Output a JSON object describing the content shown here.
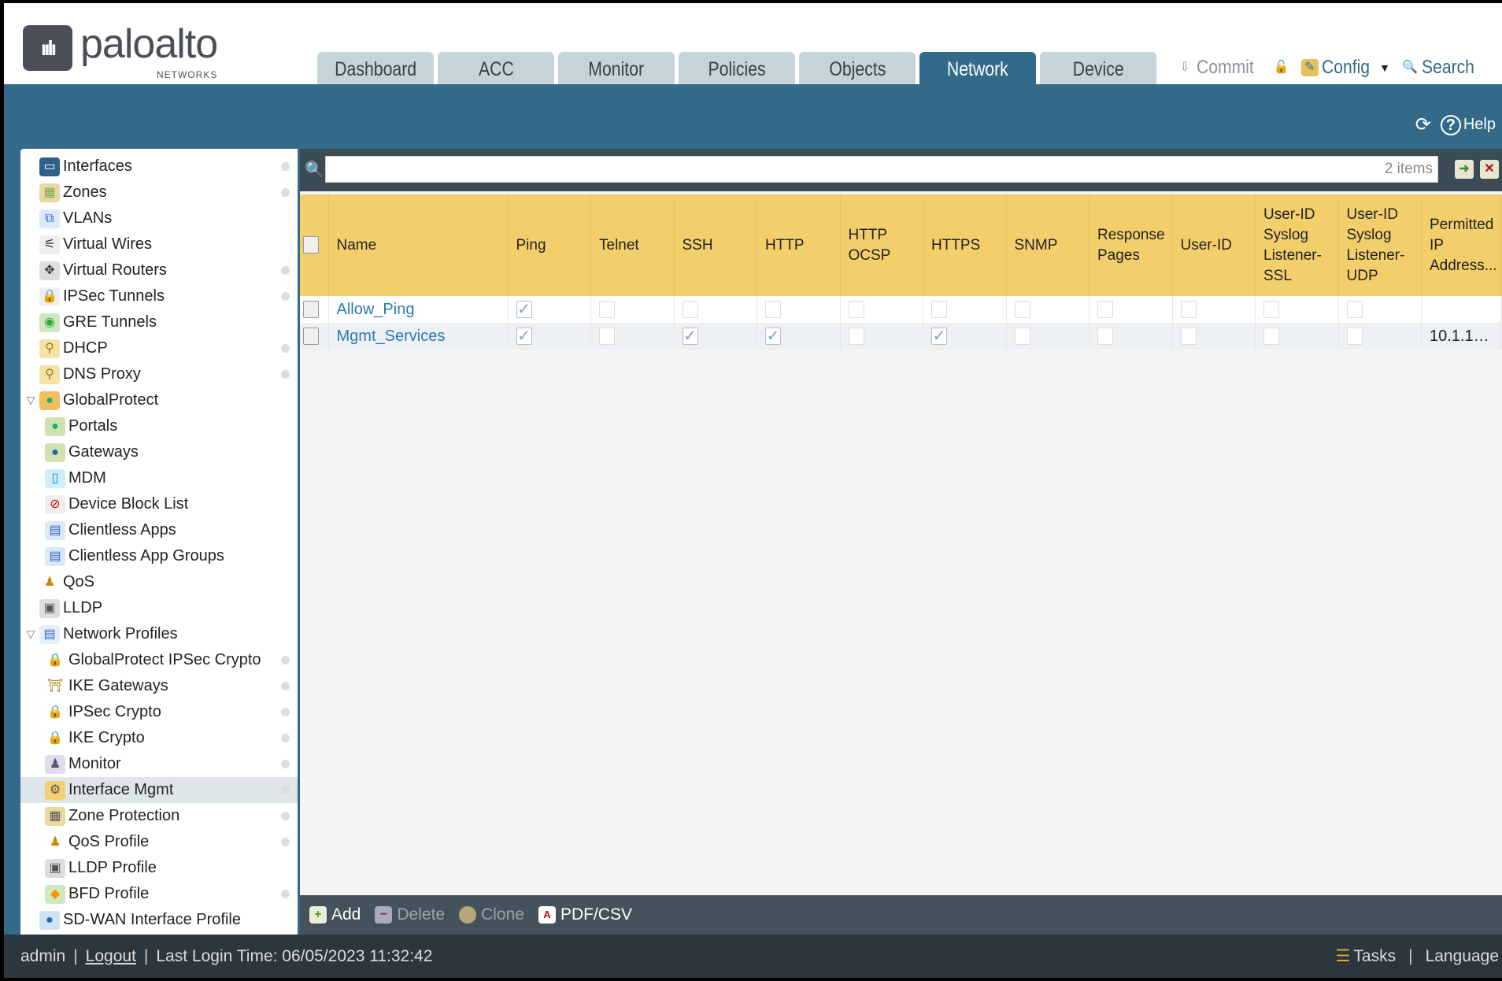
{
  "brand": {
    "logo_text": "paloalto",
    "logo_sub": "NETWORKS"
  },
  "tabs": [
    {
      "label": "Dashboard"
    },
    {
      "label": "ACC"
    },
    {
      "label": "Monitor"
    },
    {
      "label": "Policies"
    },
    {
      "label": "Objects"
    },
    {
      "label": "Network",
      "active": true
    },
    {
      "label": "Device"
    }
  ],
  "toolbar": {
    "commit": "Commit",
    "config": "Config",
    "search": "Search",
    "help": "Help"
  },
  "sidebar": {
    "items": [
      {
        "label": "Interfaces",
        "icon": "interfaces-icon",
        "level": 1,
        "dot": true
      },
      {
        "label": "Zones",
        "icon": "zones-icon",
        "level": 1,
        "dot": true
      },
      {
        "label": "VLANs",
        "icon": "vlans-icon",
        "level": 1
      },
      {
        "label": "Virtual Wires",
        "icon": "virtual-wires-icon",
        "level": 1
      },
      {
        "label": "Virtual Routers",
        "icon": "virtual-routers-icon",
        "level": 1,
        "dot": true
      },
      {
        "label": "IPSec Tunnels",
        "icon": "ipsec-tunnels-icon",
        "level": 1,
        "dot": true
      },
      {
        "label": "GRE Tunnels",
        "icon": "gre-tunnels-icon",
        "level": 1
      },
      {
        "label": "DHCP",
        "icon": "dhcp-icon",
        "level": 1,
        "dot": true
      },
      {
        "label": "DNS Proxy",
        "icon": "dns-proxy-icon",
        "level": 1,
        "dot": true
      },
      {
        "label": "GlobalProtect",
        "icon": "globalprotect-icon",
        "level": 1,
        "expanded": true
      },
      {
        "label": "Portals",
        "icon": "portals-icon",
        "level": 2
      },
      {
        "label": "Gateways",
        "icon": "gateways-icon",
        "level": 2
      },
      {
        "label": "MDM",
        "icon": "mdm-icon",
        "level": 2
      },
      {
        "label": "Device Block List",
        "icon": "device-block-icon",
        "level": 2
      },
      {
        "label": "Clientless Apps",
        "icon": "clientless-apps-icon",
        "level": 2
      },
      {
        "label": "Clientless App Groups",
        "icon": "clientless-groups-icon",
        "level": 2
      },
      {
        "label": "QoS",
        "icon": "qos-icon",
        "level": 1
      },
      {
        "label": "LLDP",
        "icon": "lldp-icon",
        "level": 1
      },
      {
        "label": "Network Profiles",
        "icon": "network-profiles-icon",
        "level": 1,
        "expanded": true
      },
      {
        "label": "GlobalProtect IPSec Crypto",
        "icon": "lock-icon",
        "level": 2,
        "dot": true
      },
      {
        "label": "IKE Gateways",
        "icon": "ike-gateways-icon",
        "level": 2,
        "dot": true
      },
      {
        "label": "IPSec Crypto",
        "icon": "lock-icon",
        "level": 2,
        "dot": true
      },
      {
        "label": "IKE Crypto",
        "icon": "lock-icon",
        "level": 2,
        "dot": true
      },
      {
        "label": "Monitor",
        "icon": "monitor-icon",
        "level": 2,
        "dot": true
      },
      {
        "label": "Interface Mgmt",
        "icon": "interface-mgmt-icon",
        "level": 2,
        "dot": true,
        "selected": true
      },
      {
        "label": "Zone Protection",
        "icon": "zone-protection-icon",
        "level": 2,
        "dot": true
      },
      {
        "label": "QoS Profile",
        "icon": "qos-icon",
        "level": 2,
        "dot": true
      },
      {
        "label": "LLDP Profile",
        "icon": "lldp-icon",
        "level": 2
      },
      {
        "label": "BFD Profile",
        "icon": "bfd-icon",
        "level": 2,
        "dot": true
      },
      {
        "label": "SD-WAN Interface Profile",
        "icon": "sdwan-icon",
        "level": 1
      }
    ]
  },
  "search": {
    "value": "",
    "count": "2 items"
  },
  "table": {
    "columns": [
      "Name",
      "Ping",
      "Telnet",
      "SSH",
      "HTTP",
      "HTTP OCSP",
      "HTTPS",
      "SNMP",
      "Response Pages",
      "User-ID",
      "User-ID Syslog Listener-SSL",
      "User-ID Syslog Listener-UDP",
      "Permitted IP Address..."
    ],
    "rows": [
      {
        "name": "Allow_Ping",
        "checks": [
          true,
          false,
          false,
          false,
          false,
          false,
          false,
          false,
          false,
          false,
          false
        ],
        "permitted": ""
      },
      {
        "name": "Mgmt_Services",
        "checks": [
          true,
          false,
          true,
          true,
          false,
          true,
          false,
          false,
          false,
          false,
          false
        ],
        "permitted": "10.1.10..."
      }
    ]
  },
  "actions": {
    "add": "Add",
    "delete": "Delete",
    "clone": "Clone",
    "pdf": "PDF/CSV"
  },
  "footer": {
    "user": "admin",
    "logout": "Logout",
    "last_login": "Last Login Time: 06/05/2023 11:32:42",
    "tasks": "Tasks",
    "language": "Language"
  },
  "colors": {
    "brand_blue": "#336a8a",
    "header_yellow": "#f2cf6b",
    "link": "#2a7ab0"
  }
}
